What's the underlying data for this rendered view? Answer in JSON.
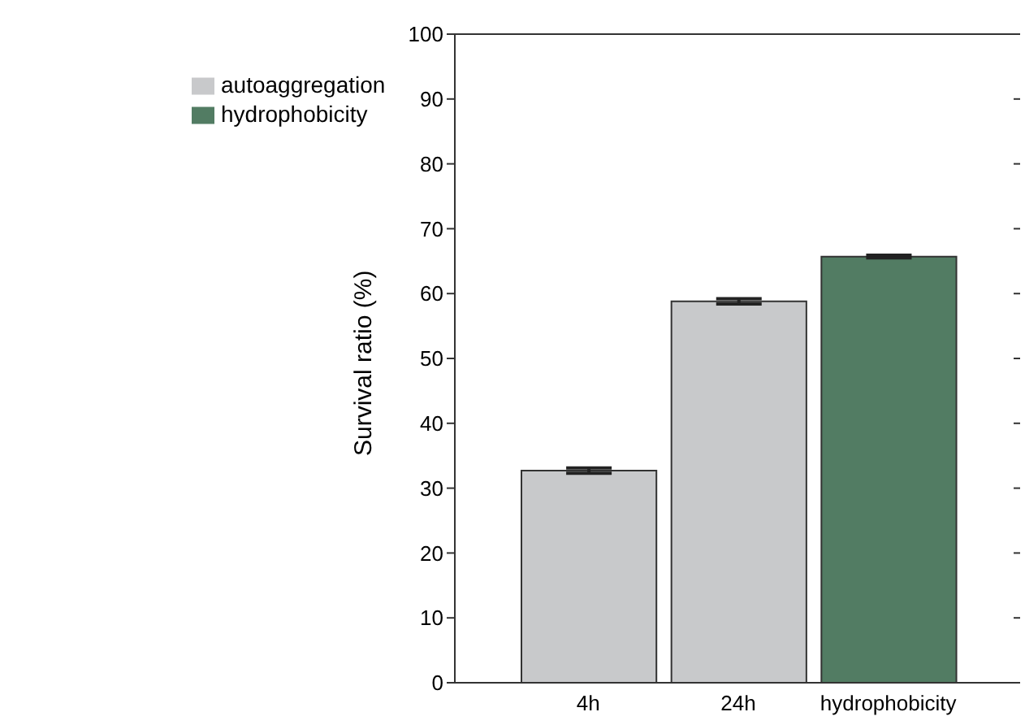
{
  "chart_data": {
    "type": "bar",
    "ylabel": "Survival ratio (%)",
    "categories": [
      "4h",
      "24h",
      "hydrophobicity"
    ],
    "series": [
      {
        "name": "autoaggregation",
        "color": "#c8c9cb",
        "values": [
          32.7,
          58.8,
          null
        ],
        "errors": [
          0.4,
          0.4,
          null
        ]
      },
      {
        "name": "hydrophobicity",
        "color": "#527c63",
        "values": [
          null,
          null,
          65.7
        ],
        "errors": [
          null,
          null,
          0.2
        ]
      }
    ],
    "ylim": [
      0,
      100
    ],
    "yticks": [
      0,
      10,
      20,
      30,
      40,
      50,
      60,
      70,
      80,
      90,
      100
    ],
    "grid": false,
    "legend": "top left"
  }
}
